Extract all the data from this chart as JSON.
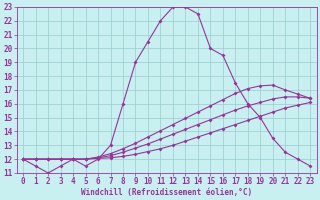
{
  "title": "",
  "xlabel": "Windchill (Refroidissement éolien,°C)",
  "bg_color": "#c8f0f0",
  "line_color": "#993399",
  "grid_color": "#99cccc",
  "xlim": [
    -0.5,
    23.5
  ],
  "ylim": [
    11,
    23
  ],
  "xticks": [
    0,
    1,
    2,
    3,
    4,
    5,
    6,
    7,
    8,
    9,
    10,
    11,
    12,
    13,
    14,
    15,
    16,
    17,
    18,
    19,
    20,
    21,
    22,
    23
  ],
  "yticks": [
    11,
    12,
    13,
    14,
    15,
    16,
    17,
    18,
    19,
    20,
    21,
    22,
    23
  ],
  "curve1_x": [
    0,
    1,
    2,
    3,
    4,
    5,
    6,
    7,
    8,
    9,
    10,
    11,
    12,
    13,
    14,
    15,
    16,
    17,
    18,
    19,
    20,
    21,
    22,
    23
  ],
  "curve1_y": [
    12.0,
    11.5,
    11.0,
    11.5,
    12.0,
    11.5,
    12.0,
    13.0,
    16.0,
    19.0,
    20.5,
    22.0,
    23.0,
    23.0,
    22.5,
    20.0,
    19.5,
    17.5,
    16.0,
    15.0,
    13.5,
    12.5,
    12.0,
    11.5
  ],
  "curve2_x": [
    0,
    1,
    2,
    3,
    4,
    5,
    6,
    7,
    8,
    9,
    10,
    11,
    12,
    13,
    14,
    15,
    16,
    17,
    18,
    19,
    20,
    21,
    22,
    23
  ],
  "curve2_y": [
    12.0,
    12.0,
    12.0,
    12.0,
    12.0,
    12.0,
    12.05,
    12.1,
    12.2,
    12.35,
    12.55,
    12.75,
    13.0,
    13.3,
    13.6,
    13.9,
    14.2,
    14.5,
    14.8,
    15.1,
    15.4,
    15.7,
    15.9,
    16.1
  ],
  "curve3_x": [
    0,
    1,
    2,
    3,
    4,
    5,
    6,
    7,
    8,
    9,
    10,
    11,
    12,
    13,
    14,
    15,
    16,
    17,
    18,
    19,
    20,
    21,
    22,
    23
  ],
  "curve3_y": [
    12.0,
    12.0,
    12.0,
    12.0,
    12.0,
    12.0,
    12.1,
    12.25,
    12.5,
    12.8,
    13.1,
    13.45,
    13.8,
    14.15,
    14.5,
    14.85,
    15.2,
    15.55,
    15.85,
    16.1,
    16.35,
    16.5,
    16.5,
    16.4
  ],
  "curve4_x": [
    0,
    1,
    2,
    3,
    4,
    5,
    6,
    7,
    8,
    9,
    10,
    11,
    12,
    13,
    14,
    15,
    16,
    17,
    18,
    19,
    20,
    21,
    22,
    23
  ],
  "curve4_y": [
    12.0,
    12.0,
    12.0,
    12.0,
    12.0,
    12.0,
    12.15,
    12.4,
    12.75,
    13.15,
    13.6,
    14.05,
    14.5,
    14.95,
    15.4,
    15.85,
    16.3,
    16.75,
    17.1,
    17.3,
    17.35,
    17.0,
    16.7,
    16.4
  ],
  "markersize": 2.0,
  "linewidth": 0.8,
  "tick_fontsize": 5.5,
  "xlabel_fontsize": 5.5
}
